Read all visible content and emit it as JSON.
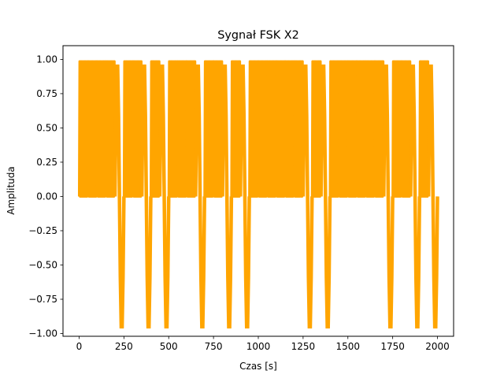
{
  "chart_data": {
    "type": "line",
    "title": "Sygnał FSK X2",
    "xlabel": "Czas [s]",
    "ylabel": "Amplituda",
    "xlim": [
      -90,
      2090
    ],
    "ylim": [
      -1.02,
      1.1
    ],
    "xticks": [
      0,
      250,
      500,
      750,
      1000,
      1250,
      1500,
      1750,
      2000
    ],
    "xtick_labels": [
      "0",
      "250",
      "500",
      "750",
      "1000",
      "1250",
      "1500",
      "1750",
      "2000"
    ],
    "yticks": [
      -1.0,
      -0.75,
      -0.5,
      -0.25,
      0.0,
      0.25,
      0.5,
      0.75,
      1.0
    ],
    "ytick_labels": [
      "−1.00",
      "−0.75",
      "−0.50",
      "−0.25",
      "0.00",
      "0.25",
      "0.50",
      "0.75",
      "1.00"
    ],
    "grid": false,
    "legend": "none",
    "series": [
      {
        "color": "#ffa500",
        "samples_per_segment": 50,
        "segment_high_frequency": [
          1,
          1,
          1,
          1,
          0,
          1,
          1,
          0,
          1,
          0,
          1,
          1,
          1,
          0,
          1,
          1,
          0,
          1,
          0,
          1,
          1,
          1,
          1,
          1,
          1,
          0,
          1,
          0,
          1,
          1,
          1,
          1,
          1,
          1,
          0,
          1,
          1,
          0,
          1,
          0
        ],
        "high_band": {
          "min": 0.0,
          "max": 0.985
        },
        "low_band_values": [
          0.0,
          0.59,
          0.95,
          0.95,
          0.59,
          0.0,
          -0.59,
          -0.95,
          -0.95,
          -0.59
        ]
      }
    ]
  }
}
